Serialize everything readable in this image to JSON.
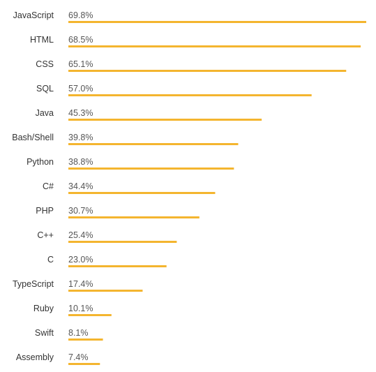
{
  "chart_data": {
    "type": "bar",
    "orientation": "horizontal",
    "categories": [
      "JavaScript",
      "HTML",
      "CSS",
      "SQL",
      "Java",
      "Bash/Shell",
      "Python",
      "C#",
      "PHP",
      "C++",
      "C",
      "TypeScript",
      "Ruby",
      "Swift",
      "Assembly"
    ],
    "values": [
      69.8,
      68.5,
      65.1,
      57.0,
      45.3,
      39.8,
      38.8,
      34.4,
      30.7,
      25.4,
      23.0,
      17.4,
      10.1,
      8.1,
      7.4
    ],
    "value_labels": [
      "69.8%",
      "68.5%",
      "65.1%",
      "57.0%",
      "45.3%",
      "39.8%",
      "38.8%",
      "34.4%",
      "30.7%",
      "25.4%",
      "23.0%",
      "17.4%",
      "10.1%",
      "8.1%",
      "7.4%"
    ],
    "value_unit": "%",
    "xlim": [
      0,
      69.8
    ],
    "bar_color": "#f4b52f",
    "grid": false,
    "legend": "none"
  }
}
